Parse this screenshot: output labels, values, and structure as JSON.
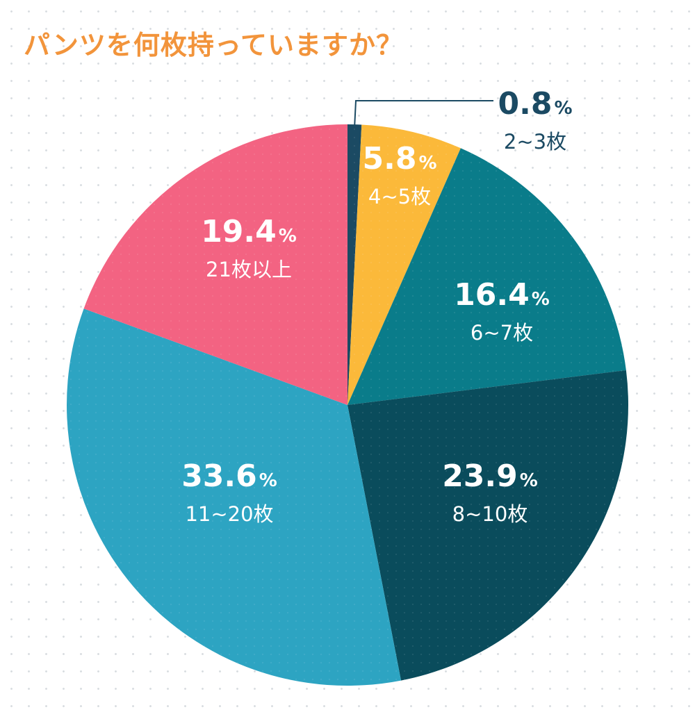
{
  "chart_data": {
    "type": "pie",
    "title": "パンツを何枚持っていますか？",
    "percent_sign": "%",
    "slices": [
      {
        "label": "2~3枚",
        "value": 0.8,
        "value_text": "0.8",
        "color": "#1b4a63",
        "label_color": "#1b4a63",
        "outside": true
      },
      {
        "label": "4~5枚",
        "value": 5.8,
        "value_text": "5.8",
        "color": "#fbb93a",
        "label_color": "#ffffff"
      },
      {
        "label": "6~7枚",
        "value": 16.4,
        "value_text": "16.4",
        "color": "#0a7c8a",
        "label_color": "#ffffff"
      },
      {
        "label": "8~10枚",
        "value": 23.9,
        "value_text": "23.9",
        "color": "#0a4c5c",
        "label_color": "#ffffff"
      },
      {
        "label": "11~20枚",
        "value": 33.6,
        "value_text": "33.6",
        "color": "#2da4c2",
        "label_color": "#ffffff"
      },
      {
        "label": "21枚以上",
        "value": 19.4,
        "value_text": "19.4",
        "color": "#f36382",
        "label_color": "#ffffff"
      }
    ]
  }
}
